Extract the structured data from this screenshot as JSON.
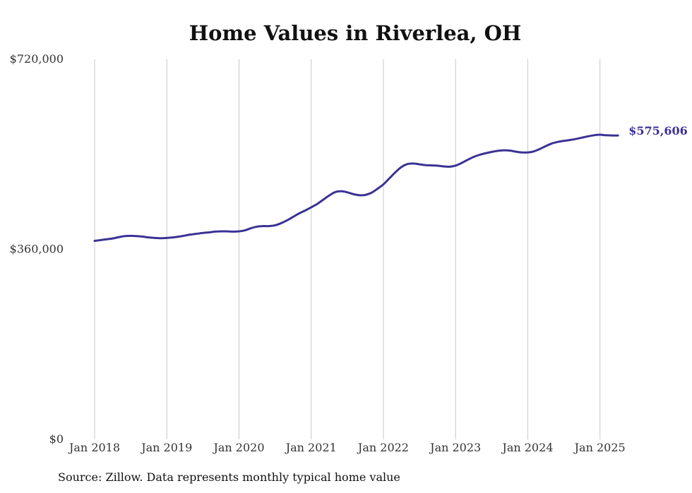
{
  "colors": {
    "line": "#3b3294",
    "grid": "#c8c8c8",
    "text": "#111111",
    "axis_text": "#333333"
  },
  "chart_data": {
    "type": "line",
    "title": "Home Values in Riverlea, OH",
    "xlabel": "",
    "ylabel": "",
    "ylim": [
      0,
      720000
    ],
    "y_ticks": [
      0,
      360000,
      720000
    ],
    "y_tick_labels": [
      "$0",
      "$360,000",
      "$720,000"
    ],
    "x_ticks": [
      "2018-01",
      "2019-01",
      "2020-01",
      "2021-01",
      "2022-01",
      "2023-01",
      "2024-01",
      "2025-01"
    ],
    "x_tick_labels": [
      "Jan 2018",
      "Jan 2019",
      "Jan 2020",
      "Jan 2021",
      "Jan 2022",
      "Jan 2023",
      "Jan 2024",
      "Jan 2025"
    ],
    "grid": "vertical",
    "end_label": "$575,606",
    "series": [
      {
        "x": [
          "2018-01",
          "2018-02",
          "2018-03",
          "2018-04",
          "2018-05",
          "2018-06",
          "2018-07",
          "2018-08",
          "2018-09",
          "2018-10",
          "2018-11",
          "2018-12",
          "2019-01",
          "2019-02",
          "2019-03",
          "2019-04",
          "2019-05",
          "2019-06",
          "2019-07",
          "2019-08",
          "2019-09",
          "2019-10",
          "2019-11",
          "2019-12",
          "2020-01",
          "2020-02",
          "2020-03",
          "2020-04",
          "2020-05",
          "2020-06",
          "2020-07",
          "2020-08",
          "2020-09",
          "2020-10",
          "2020-11",
          "2020-12",
          "2021-01",
          "2021-02",
          "2021-03",
          "2021-04",
          "2021-05",
          "2021-06",
          "2021-07",
          "2021-08",
          "2021-09",
          "2021-10",
          "2021-11",
          "2021-12",
          "2022-01",
          "2022-02",
          "2022-03",
          "2022-04",
          "2022-05",
          "2022-06",
          "2022-07",
          "2022-08",
          "2022-09",
          "2022-10",
          "2022-11",
          "2022-12",
          "2023-01",
          "2023-02",
          "2023-03",
          "2023-04",
          "2023-05",
          "2023-06",
          "2023-07",
          "2023-08",
          "2023-09",
          "2023-10",
          "2023-11",
          "2023-12",
          "2024-01",
          "2024-02",
          "2024-03",
          "2024-04",
          "2024-05",
          "2024-06",
          "2024-07",
          "2024-08",
          "2024-09",
          "2024-10",
          "2024-11",
          "2024-12",
          "2025-01",
          "2025-02",
          "2025-03",
          "2025-04"
        ],
        "values": [
          376000,
          377500,
          379000,
          380500,
          383000,
          385000,
          385500,
          385000,
          384000,
          382500,
          381500,
          381000,
          381500,
          382500,
          384000,
          386000,
          388000,
          389500,
          391000,
          392000,
          393500,
          394000,
          394000,
          393500,
          394000,
          396000,
          400000,
          403000,
          404000,
          404000,
          405500,
          409500,
          415000,
          421500,
          428000,
          433500,
          439500,
          446000,
          454000,
          462000,
          468500,
          470000,
          468000,
          464500,
          462500,
          463000,
          467000,
          474500,
          483000,
          494500,
          506000,
          516000,
          521500,
          522500,
          521000,
          519500,
          519000,
          518500,
          517000,
          516500,
          518500,
          523500,
          529500,
          535000,
          539000,
          542000,
          544500,
          546500,
          547500,
          547000,
          545000,
          543500,
          543500,
          545500,
          550000,
          555500,
          560500,
          563500,
          565500,
          567000,
          569000,
          571500,
          574000,
          576000,
          577000,
          576000,
          575606,
          575606
        ]
      }
    ]
  },
  "source": "Source: Zillow. Data represents monthly typical home value"
}
